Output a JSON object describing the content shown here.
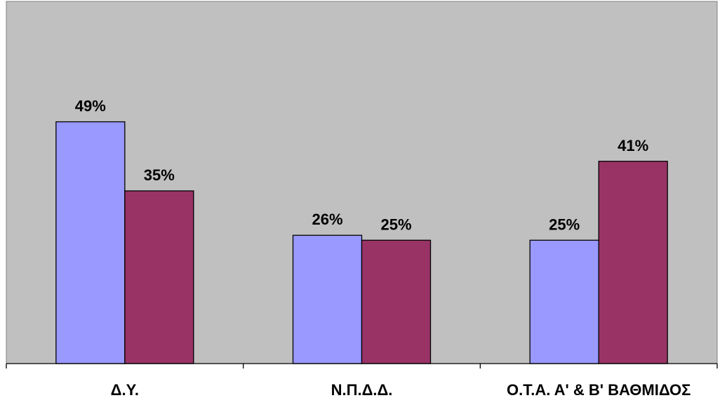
{
  "chart_data": {
    "type": "bar",
    "categories": [
      "Δ.Υ.",
      "Ν.Π.Δ.Δ.",
      "Ο.Τ.Α. Α' & Β' ΒΑΘΜΙΔΟΣ"
    ],
    "series": [
      {
        "values": [
          49,
          26,
          25
        ],
        "labels": [
          "49%",
          "26%",
          "25%"
        ],
        "color": "#9999ff"
      },
      {
        "values": [
          35,
          25,
          41
        ],
        "labels": [
          "35%",
          "25%",
          "41%"
        ],
        "color": "#993366"
      }
    ],
    "ylim": [
      0,
      60
    ],
    "grid": false,
    "plot_background": "#c0c0c0",
    "title": "",
    "xlabel": "",
    "ylabel": ""
  }
}
